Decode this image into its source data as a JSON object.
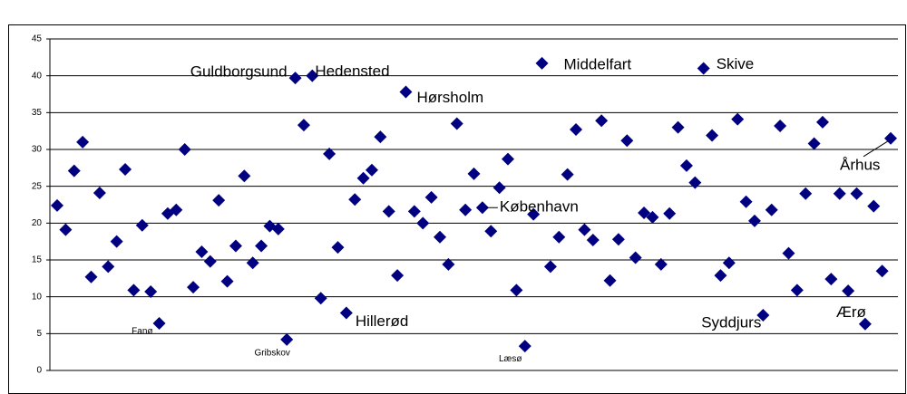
{
  "chart_data": {
    "type": "scatter",
    "ylim": [
      0,
      45
    ],
    "yticks": [
      0,
      5,
      10,
      15,
      20,
      25,
      30,
      35,
      40,
      45
    ],
    "grid": true,
    "color": "#000080",
    "values": [
      22.4,
      19.1,
      27.1,
      31.0,
      12.7,
      24.1,
      14.1,
      17.5,
      27.3,
      10.9,
      19.7,
      10.7,
      6.4,
      21.3,
      21.8,
      30.0,
      11.3,
      16.1,
      14.8,
      23.1,
      12.1,
      16.9,
      26.4,
      14.6,
      16.9,
      19.6,
      19.2,
      4.2,
      39.7,
      33.3,
      40.0,
      9.8,
      29.4,
      16.7,
      7.8,
      23.2,
      26.1,
      27.2,
      31.7,
      21.6,
      12.9,
      37.8,
      21.6,
      20.0,
      23.5,
      18.1,
      14.4,
      33.5,
      21.8,
      26.7,
      22.1,
      18.9,
      24.8,
      28.7,
      10.9,
      3.3,
      21.2,
      41.7,
      14.1,
      18.1,
      26.6,
      32.7,
      19.1,
      17.7,
      33.9,
      12.2,
      17.8,
      31.2,
      15.3,
      21.4,
      20.8,
      14.4,
      21.3,
      33.0,
      27.8,
      25.5,
      41.0,
      31.9,
      12.9,
      14.6,
      34.1,
      22.9,
      20.3,
      7.5,
      21.8,
      33.2,
      15.9,
      10.9,
      24.0,
      30.8,
      33.7,
      12.4,
      24.0,
      10.8,
      24.0,
      6.3,
      22.3,
      13.5,
      31.5
    ],
    "point_labels": [
      null,
      null,
      null,
      null,
      null,
      null,
      null,
      null,
      null,
      null,
      null,
      null,
      "Fanø",
      null,
      null,
      null,
      null,
      null,
      null,
      null,
      null,
      null,
      null,
      null,
      null,
      null,
      null,
      "Gribskov",
      "Guldborgsund",
      null,
      "Hedensted",
      null,
      null,
      null,
      "Hillerød",
      null,
      null,
      null,
      null,
      null,
      null,
      "Hørsholm",
      null,
      null,
      null,
      null,
      null,
      null,
      null,
      null,
      "København",
      null,
      null,
      null,
      null,
      "Læsø",
      null,
      "Middelfart",
      null,
      null,
      null,
      null,
      null,
      null,
      null,
      null,
      null,
      null,
      null,
      null,
      null,
      null,
      null,
      null,
      null,
      null,
      "Skive",
      null,
      null,
      null,
      null,
      null,
      null,
      "Syddjurs",
      null,
      null,
      null,
      null,
      null,
      null,
      null,
      null,
      null,
      null,
      null,
      "Ærø",
      null,
      null,
      "Århus"
    ]
  }
}
